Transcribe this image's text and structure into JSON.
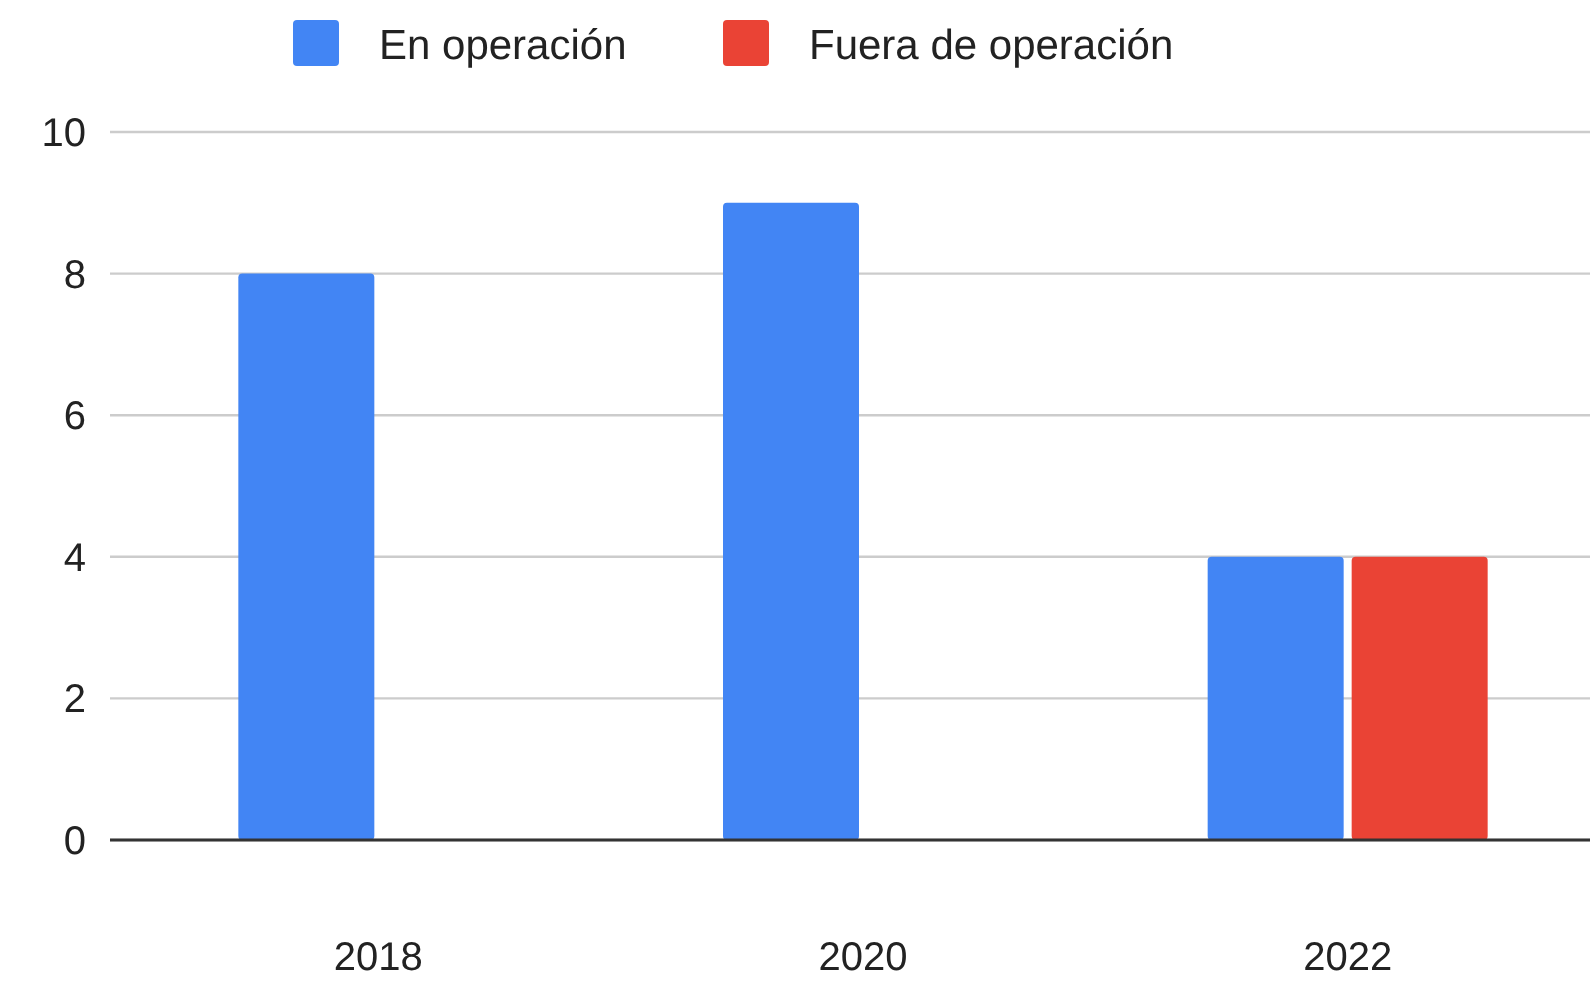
{
  "chart_data": {
    "type": "bar",
    "categories": [
      "2018",
      "2020",
      "2022"
    ],
    "series": [
      {
        "name": "En operación",
        "color": "#4285f4",
        "values": [
          8,
          9,
          4
        ]
      },
      {
        "name": "Fuera de operación",
        "color": "#ea4335",
        "values": [
          0,
          0,
          4
        ]
      }
    ],
    "ylim": [
      0,
      10
    ],
    "yticks": [
      0,
      2,
      4,
      6,
      8,
      10
    ],
    "grid": "y",
    "legend": "top"
  }
}
